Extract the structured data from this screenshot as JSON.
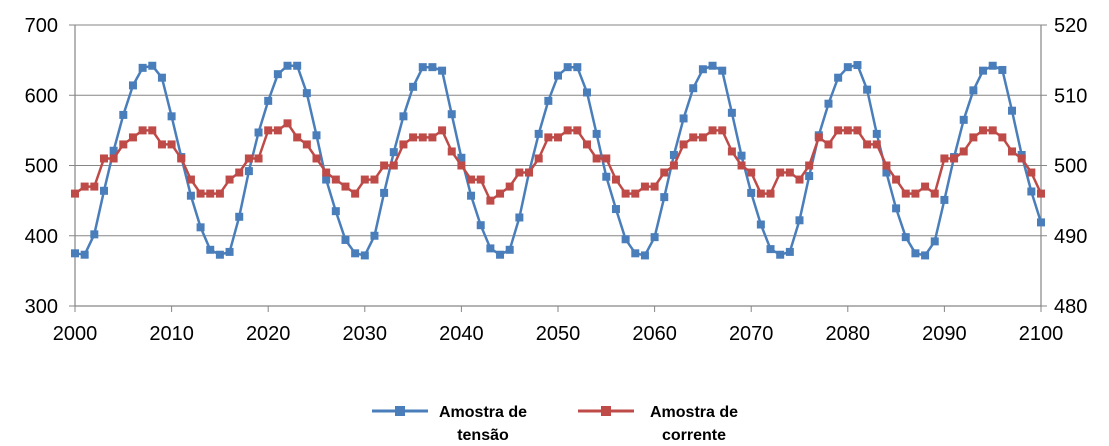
{
  "colors": {
    "tensao": "#4a7ebb",
    "corrente": "#be4b48",
    "axis": "#868686",
    "grid": "#868686"
  },
  "chart_data": {
    "type": "line",
    "title": "",
    "xlabel": "",
    "ylabel": "",
    "xlim": [
      2000,
      2100
    ],
    "x_ticks": [
      2000,
      2010,
      2020,
      2030,
      2040,
      2050,
      2060,
      2070,
      2080,
      2090,
      2100
    ],
    "ylim_left": [
      300,
      700
    ],
    "y_left_ticks": [
      300,
      400,
      500,
      600,
      700
    ],
    "ylim_right": [
      480,
      520
    ],
    "y_right_ticks": [
      480,
      490,
      500,
      510,
      520
    ],
    "grid": "horizontal",
    "legend_position": "bottom",
    "x": [
      2000,
      2001,
      2002,
      2003,
      2004,
      2005,
      2006,
      2007,
      2008,
      2009,
      2010,
      2011,
      2012,
      2013,
      2014,
      2015,
      2016,
      2017,
      2018,
      2019,
      2020,
      2021,
      2022,
      2023,
      2024,
      2025,
      2026,
      2027,
      2028,
      2029,
      2030,
      2031,
      2032,
      2033,
      2034,
      2035,
      2036,
      2037,
      2038,
      2039,
      2040,
      2041,
      2042,
      2043,
      2044,
      2045,
      2046,
      2047,
      2048,
      2049,
      2050,
      2051,
      2052,
      2053,
      2054,
      2055,
      2056,
      2057,
      2058,
      2059,
      2060,
      2061,
      2062,
      2063,
      2064,
      2065,
      2066,
      2067,
      2068,
      2069,
      2070,
      2071,
      2072,
      2073,
      2074,
      2075,
      2076,
      2077,
      2078,
      2079,
      2080,
      2081,
      2082,
      2083,
      2084,
      2085,
      2086,
      2087,
      2088,
      2089,
      2090,
      2091,
      2092,
      2093,
      2094,
      2095,
      2096,
      2097,
      2098,
      2099,
      2100
    ],
    "series": [
      {
        "name": "Amostra de tensão",
        "axis": "left",
        "values": [
          375,
          373,
          402,
          464,
          521,
          572,
          614,
          639,
          642,
          625,
          570,
          512,
          457,
          412,
          380,
          373,
          377,
          427,
          492,
          547,
          592,
          630,
          642,
          642,
          603,
          543,
          480,
          435,
          394,
          375,
          372,
          400,
          461,
          519,
          570,
          612,
          640,
          640,
          635,
          573,
          511,
          457,
          415,
          382,
          373,
          380,
          426,
          490,
          545,
          592,
          628,
          640,
          640,
          604,
          545,
          484,
          438,
          395,
          375,
          372,
          398,
          455,
          515,
          567,
          610,
          637,
          642,
          635,
          575,
          514,
          461,
          416,
          381,
          373,
          377,
          422,
          485,
          543,
          588,
          625,
          640,
          643,
          608,
          545,
          490,
          439,
          398,
          375,
          372,
          392,
          451,
          512,
          565,
          607,
          635,
          642,
          636,
          578,
          515,
          463,
          419
        ]
      },
      {
        "name": "Amostra de corrente",
        "axis": "right",
        "values": [
          496,
          497,
          497,
          501,
          501,
          503,
          504,
          505,
          505,
          503,
          503,
          501,
          498,
          496,
          496,
          496,
          498,
          499,
          501,
          501,
          505,
          505,
          506,
          504,
          503,
          501,
          499,
          498,
          497,
          496,
          498,
          498,
          500,
          500,
          503,
          504,
          504,
          504,
          505,
          502,
          500,
          498,
          498,
          495,
          496,
          497,
          499,
          499,
          501,
          504,
          504,
          505,
          505,
          503,
          501,
          501,
          498,
          496,
          496,
          497,
          497,
          499,
          500,
          503,
          504,
          504,
          505,
          505,
          502,
          500,
          499,
          496,
          496,
          499,
          499,
          498,
          500,
          504,
          503,
          505,
          505,
          505,
          503,
          503,
          500,
          498,
          496,
          496,
          497,
          496,
          501,
          501,
          502,
          504,
          505,
          505,
          504,
          502,
          501,
          499,
          496
        ]
      }
    ]
  },
  "legend": {
    "tensao_line1": "Amostra de",
    "tensao_line2": "tensão",
    "corrente_line1": "Amostra de",
    "corrente_line2": "corrente"
  }
}
